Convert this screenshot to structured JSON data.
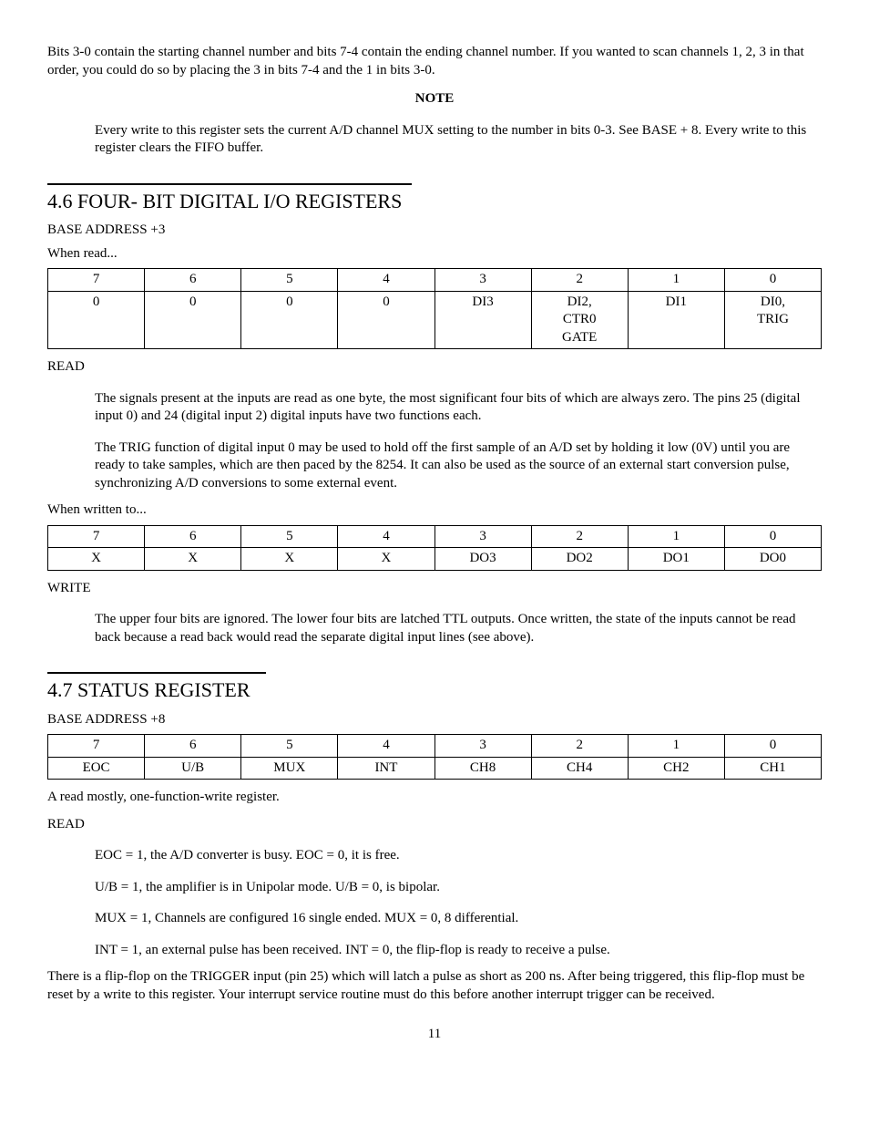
{
  "intro_para": "Bits 3-0 contain the starting channel number and bits 7-4 contain the ending channel number.  If you wanted to scan channels 1, 2, 3 in that order, you could do so by placing the 3 in bits 7-4 and the 1 in bits 3-0.",
  "note_label": "NOTE",
  "note_body": "Every write to this register sets the current A/D channel MUX setting to the number in bits 0-3.  See BASE + 8.  Every write to this register clears the FIFO buffer.",
  "sec46_title": "4.6   FOUR- BIT DIGITAL I/O REGISTERS",
  "sec46_base": "BASE ADDRESS +3",
  "sec46_when_read": "When read...",
  "bit_headers": [
    "7",
    "6",
    "5",
    "4",
    "3",
    "2",
    "1",
    "0"
  ],
  "table_read": {
    "cells": [
      "0",
      "0",
      "0",
      "0",
      "DI3",
      {
        "lines": [
          "DI2,",
          "CTR0",
          "GATE"
        ]
      },
      "DI1",
      {
        "lines": [
          "DI0,",
          "TRIG"
        ]
      }
    ]
  },
  "read_label": "READ",
  "read_p1": "The signals present at the inputs are read as one byte, the most significant four bits of which are always zero.  The pins 25 (digital input 0) and 24 (digital input 2) digital inputs have two functions each.",
  "read_p2": "The TRIG function of digital input 0 may be used to hold off the first sample of an A/D set by holding it low (0V) until you are ready to take samples, which are then paced by the 8254.  It can also be used as the source of an external start conversion pulse, synchronizing A/D conversions to some external event.",
  "sec46_when_written": "When written to...",
  "table_write": {
    "cells": [
      "X",
      "X",
      "X",
      "X",
      "DO3",
      "DO2",
      "DO1",
      "DO0"
    ]
  },
  "write_label": "WRITE",
  "write_p1": "The upper four bits are ignored.  The lower four bits are latched TTL outputs.  Once written, the state of the inputs cannot be read back because a read back would read the separate digital input lines (see above).",
  "sec47_title": "4.7   STATUS REGISTER",
  "sec47_base": "BASE ADDRESS +8",
  "table_status": {
    "cells": [
      "EOC",
      "U/B",
      "MUX",
      "INT",
      "CH8",
      "CH4",
      "CH2",
      "CH1"
    ]
  },
  "status_intro": "A read mostly, one-function-write register.",
  "status_read_label": "READ",
  "status_r1": "EOC = 1, the A/D converter is busy.  EOC = 0, it is free.",
  "status_r2": "U/B = 1, the amplifier is in Unipolar mode.  U/B = 0, is bipolar.",
  "status_r3": "MUX = 1, Channels are configured 16 single ended.  MUX = 0, 8 differential.",
  "status_r4": "INT = 1, an external pulse has been received.  INT = 0, the flip-flop is ready to receive a pulse.",
  "status_tail": "There is a flip-flop on the TRIGGER input (pin 25) which will latch a pulse as short as 200 ns.  After being triggered, this flip-flop must be reset by a write to this register.  Your interrupt service routine must do this before another interrupt trigger can be received.",
  "page_number": "11"
}
